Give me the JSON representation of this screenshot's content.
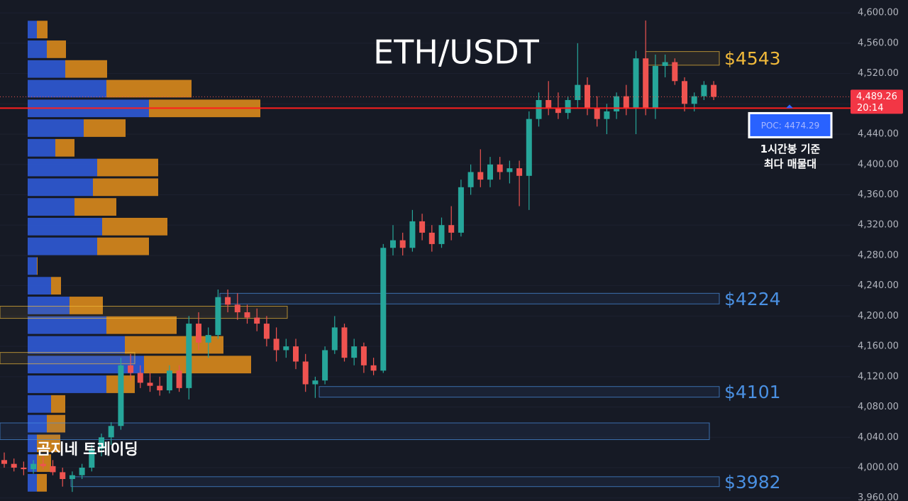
{
  "chart_data": {
    "type": "candlestick",
    "title": "ETH/USDT",
    "watermark": "곰지네 트레이딩",
    "ylim": [
      3956,
      4617
    ],
    "yticks": [
      {
        "value": 3960,
        "label": "3,960.00"
      },
      {
        "value": 4000,
        "label": "4,000.00"
      },
      {
        "value": 4040,
        "label": "4,040.00"
      },
      {
        "value": 4080,
        "label": "4,080.00"
      },
      {
        "value": 4120,
        "label": "4,120.00"
      },
      {
        "value": 4160,
        "label": "4,160.00"
      },
      {
        "value": 4200,
        "label": "4,200.00"
      },
      {
        "value": 4240,
        "label": "4,240.00"
      },
      {
        "value": 4280,
        "label": "4,280.00"
      },
      {
        "value": 4320,
        "label": "4,320.00"
      },
      {
        "value": 4360,
        "label": "4,360.00"
      },
      {
        "value": 4400,
        "label": "4,400.00"
      },
      {
        "value": 4440,
        "label": "4,440.00"
      },
      {
        "value": 4480,
        "label": "4,480.00"
      },
      {
        "value": 4520,
        "label": "4,520.00"
      },
      {
        "value": 4560,
        "label": "4,560.00"
      },
      {
        "value": 4600,
        "label": "4,600.00"
      }
    ],
    "up_color": "#26a69a",
    "down_color": "#ef5350",
    "open": [
      4010,
      4005,
      4000,
      3998,
      4005,
      4002,
      3994,
      3985,
      3990,
      4000,
      4025,
      4040,
      4055,
      4135,
      4125,
      4112,
      4108,
      4102,
      4128,
      4105,
      4190,
      4165,
      4175,
      4225,
      4215,
      4205,
      4198,
      4190,
      4170,
      4155,
      4160,
      4140,
      4110,
      4115,
      4155,
      4185,
      4145,
      4160,
      4135,
      4128,
      4290,
      4300,
      4290,
      4325,
      4310,
      4295,
      4320,
      4310,
      4370,
      4390,
      4380,
      4400,
      4390,
      4395,
      4385,
      4460,
      4485,
      4475,
      4468,
      4485,
      4505,
      4475,
      4460,
      4470,
      4490,
      4475,
      4540,
      4475,
      4530,
      4535,
      4510,
      4480,
      4490,
      4505
    ],
    "high": [
      4020,
      4012,
      4008,
      4010,
      4015,
      4010,
      4000,
      3995,
      4005,
      4030,
      4045,
      4060,
      4145,
      4150,
      4135,
      4125,
      4120,
      4135,
      4135,
      4200,
      4205,
      4185,
      4235,
      4235,
      4230,
      4215,
      4210,
      4200,
      4185,
      4170,
      4170,
      4150,
      4120,
      4160,
      4200,
      4190,
      4170,
      4165,
      4145,
      4295,
      4320,
      4310,
      4340,
      4335,
      4320,
      4330,
      4345,
      4380,
      4400,
      4420,
      4410,
      4410,
      4405,
      4405,
      4470,
      4495,
      4510,
      4495,
      4490,
      4560,
      4515,
      4490,
      4480,
      4495,
      4505,
      4550,
      4590,
      4545,
      4545,
      4540,
      4515,
      4495,
      4510,
      4510
    ],
    "low": [
      4000,
      3995,
      3990,
      3992,
      3998,
      3990,
      3975,
      3968,
      3985,
      3995,
      4015,
      4030,
      4050,
      4115,
      4105,
      4100,
      4095,
      4098,
      4100,
      4090,
      4155,
      4145,
      4170,
      4205,
      4195,
      4190,
      4180,
      4160,
      4140,
      4145,
      4130,
      4100,
      4092,
      4110,
      4150,
      4140,
      4135,
      4125,
      4122,
      4125,
      4280,
      4280,
      4285,
      4300,
      4285,
      4290,
      4300,
      4305,
      4360,
      4370,
      4370,
      4380,
      4375,
      4345,
      4340,
      4450,
      4465,
      4460,
      4460,
      4475,
      4465,
      4450,
      4440,
      4460,
      4465,
      4440,
      4465,
      4460,
      4515,
      4505,
      4470,
      4470,
      4485,
      4485
    ],
    "close": [
      4005,
      4000,
      3998,
      4005,
      4002,
      3994,
      3985,
      3990,
      4000,
      4025,
      4040,
      4055,
      4135,
      4125,
      4112,
      4108,
      4102,
      4128,
      4105,
      4190,
      4165,
      4175,
      4225,
      4215,
      4205,
      4198,
      4190,
      4170,
      4155,
      4160,
      4140,
      4110,
      4115,
      4155,
      4185,
      4145,
      4160,
      4135,
      4128,
      4290,
      4300,
      4290,
      4325,
      4310,
      4295,
      4320,
      4310,
      4370,
      4390,
      4380,
      4400,
      4390,
      4395,
      4385,
      4460,
      4485,
      4475,
      4468,
      4485,
      4505,
      4475,
      4460,
      4470,
      4490,
      4475,
      4540,
      4475,
      4530,
      4535,
      4510,
      4480,
      4490,
      4505,
      4489.26
    ],
    "volume_profile": {
      "buy_color": "#2f5ad6",
      "sell_color": "#d98a1c",
      "price": [
        4578,
        4552,
        4526,
        4500,
        4474,
        4448,
        4422,
        4396,
        4370,
        4344,
        4318,
        4292,
        4266,
        4240,
        4214,
        4188,
        4162,
        4136,
        4110,
        4084,
        4058,
        4032,
        4006,
        3980
      ],
      "buy": [
        13,
        27,
        53,
        111,
        171,
        79,
        39,
        98,
        92,
        66,
        105,
        98,
        13,
        33,
        59,
        111,
        137,
        164,
        111,
        33,
        27,
        13,
        13,
        13
      ],
      "sell": [
        15,
        27,
        59,
        120,
        157,
        59,
        27,
        86,
        92,
        59,
        92,
        73,
        1,
        14,
        47,
        99,
        139,
        151,
        40,
        20,
        26,
        33,
        20,
        14
      ]
    },
    "zones": [
      {
        "label": "$4543",
        "low": 4531,
        "high": 4549,
        "color": "#f0b93a"
      },
      {
        "label": "$4224",
        "low": 4216,
        "high": 4230,
        "color": "#4a90e2"
      },
      {
        "label": "$4101",
        "low": 4093,
        "high": 4107,
        "color": "#4a90e2"
      },
      {
        "label": "$3982",
        "low": 3975,
        "high": 3988,
        "color": "#4a90e2"
      },
      {
        "low": 4037,
        "high": 4059,
        "color": "#4a90e2"
      },
      {
        "low": 4197,
        "high": 4213,
        "color": "#f0b93a"
      },
      {
        "low": 4137,
        "high": 4152,
        "color": "#f0b93a"
      }
    ],
    "last_price": {
      "value": 4489.26,
      "label": "4,489.26",
      "timer": "20:14"
    },
    "poc": {
      "value": 4474.29,
      "label": "POC: 4474.29",
      "note": [
        "1시간봉 기준",
        "최다 매물대"
      ]
    }
  }
}
